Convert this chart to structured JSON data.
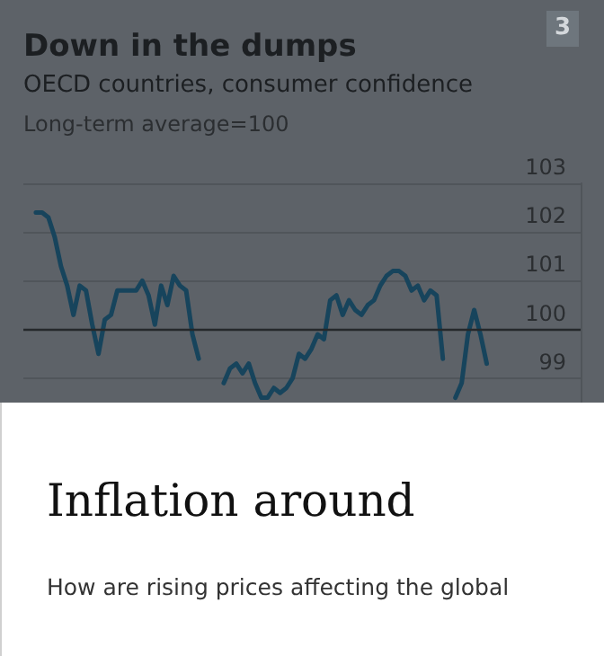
{
  "chart_data": {
    "type": "line",
    "title": "Down in the dumps",
    "subtitle": "OECD countries, consumer confidence",
    "ylabel": "Long-term average=100",
    "categories": [
      null,
      null,
      null,
      null,
      null,
      null,
      null,
      null,
      null,
      null,
      null,
      null,
      null,
      null,
      null,
      null,
      null,
      null,
      null,
      null,
      null,
      null,
      null,
      null,
      null,
      null,
      null,
      null,
      null,
      null,
      null,
      null,
      null,
      null,
      null,
      null,
      null,
      null,
      null,
      null,
      null,
      null,
      null,
      null,
      null,
      null,
      null,
      null,
      null,
      null,
      null,
      null,
      null,
      null,
      null,
      null,
      null,
      null,
      null,
      null,
      null,
      null,
      null,
      null,
      null,
      null,
      null,
      null,
      null,
      null,
      null,
      null,
      null,
      null,
      null,
      null,
      null,
      null,
      null,
      null,
      null,
      null,
      null,
      null,
      null,
      null,
      null,
      null,
      null,
      null
    ],
    "series": [
      {
        "color": "#17445c",
        "values": [
          null,
          null,
          102.4,
          102.4,
          102.3,
          101.9,
          101.3,
          100.9,
          100.3,
          100.9,
          100.8,
          100.1,
          99.5,
          100.2,
          100.3,
          100.8,
          100.8,
          100.8,
          100.8,
          101.0,
          100.7,
          100.1,
          100.9,
          100.5,
          101.1,
          100.9,
          100.8,
          99.9,
          99.4,
          null,
          null,
          null,
          98.9,
          99.2,
          99.3,
          99.1,
          99.3,
          98.9,
          98.6,
          98.6,
          98.8,
          98.7,
          98.8,
          99.0,
          99.5,
          99.4,
          99.6,
          99.9,
          99.8,
          100.6,
          100.7,
          100.3,
          100.6,
          100.4,
          100.3,
          100.5,
          100.6,
          100.9,
          101.1,
          101.2,
          101.2,
          101.1,
          100.8,
          100.9,
          100.6,
          100.8,
          100.7,
          99.4,
          null,
          98.6,
          98.9,
          99.9,
          100.4,
          99.9,
          99.3,
          null,
          null,
          null,
          null,
          null,
          null,
          null,
          null,
          null,
          null,
          null,
          null,
          null,
          null,
          null
        ]
      }
    ],
    "ylim": [
      98.5,
      103
    ],
    "yticks": [
      99,
      100,
      101,
      102,
      103
    ],
    "grid": "y",
    "line_style": "solid",
    "ref_lines": [
      {
        "axis": "y",
        "value": 100,
        "color": "#25282b"
      }
    ],
    "annotations": [
      "3",
      "Inflation around",
      "How are rising prices affecting the global"
    ]
  }
}
